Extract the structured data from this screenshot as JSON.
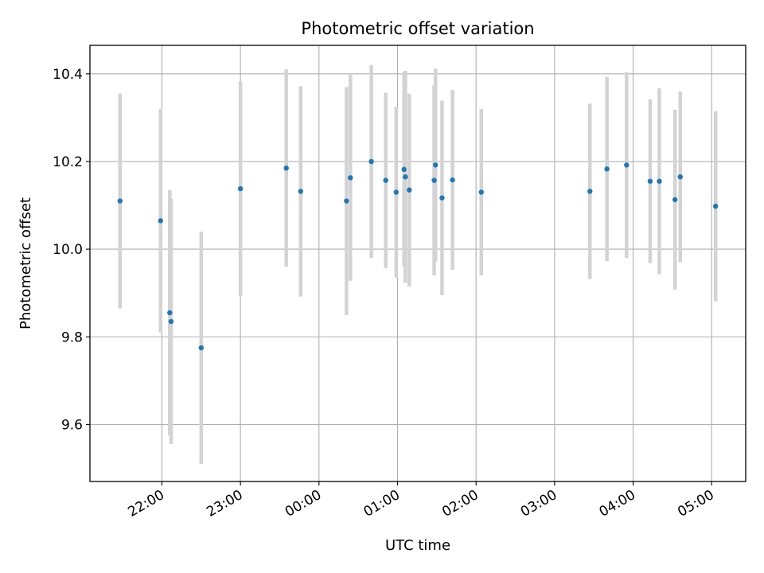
{
  "chart_data": {
    "type": "scatter",
    "title": "Photometric offset variation",
    "xlabel": "UTC time",
    "ylabel": "Photometric offset",
    "x_ticks": [
      "22:00",
      "23:00",
      "00:00",
      "01:00",
      "02:00",
      "03:00",
      "04:00",
      "05:00"
    ],
    "y_ticks": [
      "9.6",
      "9.8",
      "10.0",
      "10.2",
      "10.4"
    ],
    "xlim": [
      "21:05",
      "05:26"
    ],
    "ylim": [
      9.47,
      10.465
    ],
    "grid": true,
    "point_color": "#1f77b4",
    "errorbar_color": "#d3d3d3",
    "points": [
      {
        "x": "21:28",
        "y": 10.11,
        "err": 0.245
      },
      {
        "x": "21:59",
        "y": 10.065,
        "err": 0.255
      },
      {
        "x": "22:06",
        "y": 9.855,
        "err": 0.28
      },
      {
        "x": "22:07",
        "y": 9.835,
        "err": 0.28
      },
      {
        "x": "22:30",
        "y": 9.775,
        "err": 0.265
      },
      {
        "x": "23:00",
        "y": 10.138,
        "err": 0.245
      },
      {
        "x": "23:35",
        "y": 10.185,
        "err": 0.225
      },
      {
        "x": "23:46",
        "y": 10.132,
        "err": 0.24
      },
      {
        "x": "00:21",
        "y": 10.11,
        "err": 0.26
      },
      {
        "x": "00:24",
        "y": 10.163,
        "err": 0.235
      },
      {
        "x": "00:40",
        "y": 10.2,
        "err": 0.22
      },
      {
        "x": "00:51",
        "y": 10.157,
        "err": 0.2
      },
      {
        "x": "00:59",
        "y": 10.13,
        "err": 0.195
      },
      {
        "x": "01:05",
        "y": 10.182,
        "err": 0.222
      },
      {
        "x": "01:06",
        "y": 10.165,
        "err": 0.242
      },
      {
        "x": "01:09",
        "y": 10.135,
        "err": 0.22
      },
      {
        "x": "01:28",
        "y": 10.157,
        "err": 0.217
      },
      {
        "x": "01:29",
        "y": 10.192,
        "err": 0.22
      },
      {
        "x": "01:34",
        "y": 10.117,
        "err": 0.222
      },
      {
        "x": "01:42",
        "y": 10.158,
        "err": 0.205
      },
      {
        "x": "02:04",
        "y": 10.13,
        "err": 0.19
      },
      {
        "x": "03:27",
        "y": 10.132,
        "err": 0.2
      },
      {
        "x": "03:40",
        "y": 10.183,
        "err": 0.21
      },
      {
        "x": "03:55",
        "y": 10.192,
        "err": 0.212
      },
      {
        "x": "04:13",
        "y": 10.155,
        "err": 0.187
      },
      {
        "x": "04:20",
        "y": 10.155,
        "err": 0.212
      },
      {
        "x": "04:32",
        "y": 10.113,
        "err": 0.205
      },
      {
        "x": "04:36",
        "y": 10.165,
        "err": 0.195
      },
      {
        "x": "05:03",
        "y": 10.098,
        "err": 0.217
      }
    ]
  }
}
